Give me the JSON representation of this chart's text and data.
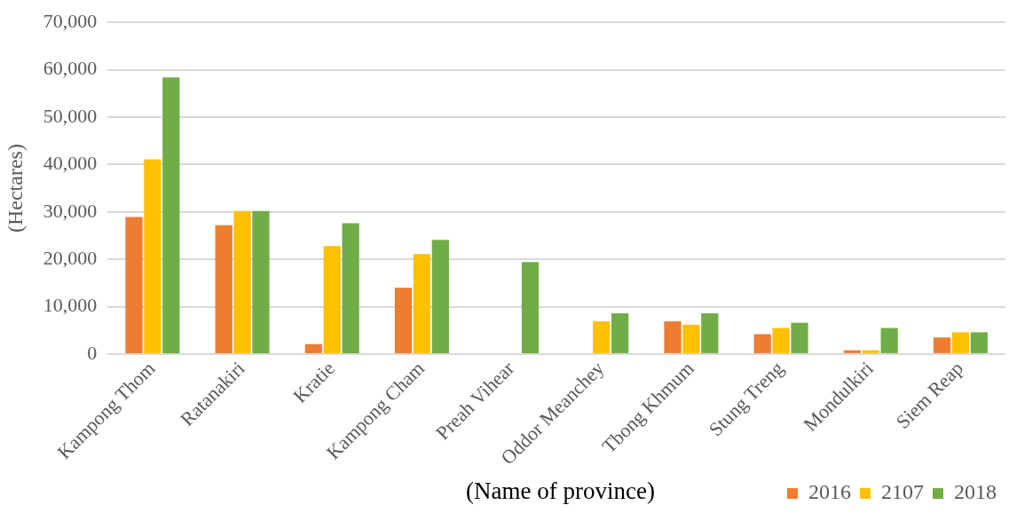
{
  "chart_data": {
    "type": "bar",
    "xlabel": "(Name of province)",
    "ylabel": "(Hectares)",
    "categories": [
      "Kampong Thom",
      "Ratanakiri",
      "Kratie",
      "Kampong Cham",
      "Preah Vihear",
      "Oddor Meanchey",
      "Tbong Khmum",
      "Stung Treng",
      "Mondulkiri",
      "Siem Reap"
    ],
    "series": [
      {
        "name": "2016",
        "color": "#ed7d31",
        "values": [
          28900,
          27200,
          2100,
          14000,
          null,
          null,
          6900,
          4200,
          800,
          3500
        ]
      },
      {
        "name": "2107",
        "color": "#ffc000",
        "values": [
          41100,
          30200,
          22800,
          21100,
          null,
          6900,
          6200,
          5500,
          800,
          4600
        ]
      },
      {
        "name": "2018",
        "color": "#70ad47",
        "values": [
          58400,
          30200,
          27600,
          24100,
          19400,
          8600,
          8600,
          6600,
          5500,
          4600
        ]
      }
    ],
    "ylim": [
      0,
      70000
    ],
    "yticks": [
      {
        "value": 0,
        "label": "0"
      },
      {
        "value": 10000,
        "label": "10,000"
      },
      {
        "value": 20000,
        "label": "20,000"
      },
      {
        "value": 30000,
        "label": "30,000"
      },
      {
        "value": 40000,
        "label": "40,000"
      },
      {
        "value": 50000,
        "label": "50,000"
      },
      {
        "value": 60000,
        "label": "60,000"
      },
      {
        "value": 70000,
        "label": "70,000"
      }
    ],
    "grid": "y",
    "legend": "bottom right"
  }
}
